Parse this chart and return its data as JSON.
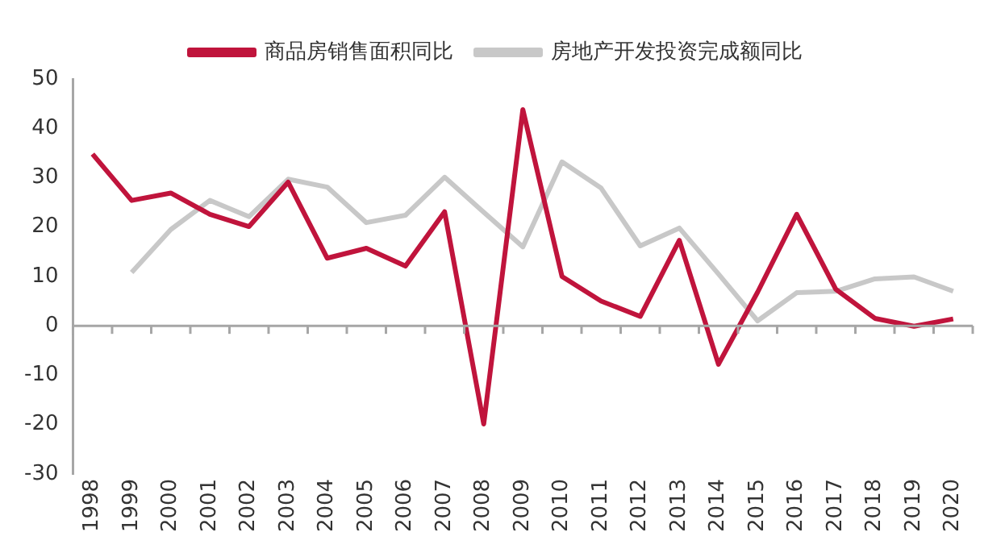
{
  "chart_data": {
    "type": "line",
    "categories": [
      "1998",
      "1999",
      "2000",
      "2001",
      "2002",
      "2003",
      "2004",
      "2005",
      "2006",
      "2007",
      "2008",
      "2009",
      "2010",
      "2011",
      "2012",
      "2013",
      "2014",
      "2015",
      "2016",
      "2017",
      "2018",
      "2019",
      "2020"
    ],
    "series": [
      {
        "name": "商品房销售面积同比",
        "color": "#c0143c",
        "values": [
          34.8,
          25.4,
          26.9,
          22.6,
          20.1,
          29.1,
          13.7,
          15.7,
          12.1,
          23.1,
          -19.9,
          43.8,
          10.0,
          5.0,
          1.9,
          17.3,
          -7.8,
          6.8,
          22.6,
          7.4,
          1.5,
          -0.1,
          1.4
        ]
      },
      {
        "name": "房地产开发投资完成额同比",
        "color": "#c8c8c8",
        "values": [
          null,
          10.8,
          19.5,
          25.4,
          22.1,
          29.7,
          28.1,
          20.9,
          22.4,
          30.1,
          23.0,
          16.0,
          33.2,
          27.9,
          16.2,
          19.8,
          10.5,
          1.0,
          6.7,
          7.0,
          9.5,
          9.9,
          7.0
        ]
      }
    ],
    "ylim": [
      -30,
      50
    ],
    "yticks": [
      -30,
      -20,
      -10,
      0,
      10,
      20,
      30,
      40,
      50
    ],
    "grid": false,
    "legend": "top",
    "marker": "none",
    "line_style": "solid",
    "ref_lines": [
      {
        "axis": "y",
        "value": 0,
        "color": "#a6a6a6"
      }
    ]
  }
}
